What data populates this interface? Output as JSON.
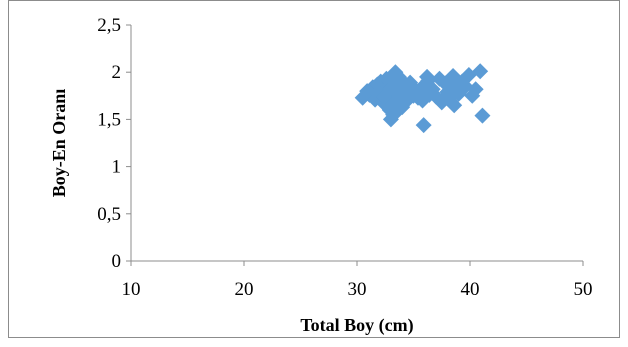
{
  "chart_data": {
    "type": "scatter",
    "title": "",
    "xlabel": "Total Boy (cm)",
    "ylabel": "Boy-En Oranı",
    "xlim": [
      10,
      50
    ],
    "ylim": [
      0,
      2.5
    ],
    "x_ticks": [
      10,
      20,
      30,
      40,
      50
    ],
    "y_ticks": [
      0,
      0.5,
      1,
      1.5,
      2,
      2.5
    ],
    "x_tick_labels": [
      "10",
      "20",
      "30",
      "40",
      "50"
    ],
    "y_tick_labels": [
      "0",
      "0,5",
      "1",
      "1,5",
      "2",
      "2,5"
    ],
    "grid": false,
    "legend": "none",
    "marker": "diamond",
    "marker_color": "#5b9bd5",
    "series": [
      {
        "x": [
          30.5,
          30.9,
          31.1,
          31.4,
          31.6,
          31.8,
          32.0,
          32.1,
          32.3,
          32.5,
          32.6,
          32.8,
          32.9,
          33.0,
          33.1,
          33.2,
          33.3,
          33.4,
          33.5,
          33.6,
          33.7,
          33.8,
          33.9,
          34.0,
          34.1,
          34.2,
          34.3,
          34.4,
          34.5,
          34.6,
          34.8,
          35.0,
          35.2,
          35.4,
          35.6,
          35.9,
          36.0,
          36.2,
          36.4,
          36.7,
          37.0,
          37.3,
          37.5,
          37.8,
          38.0,
          38.2,
          38.5,
          38.7,
          39.0,
          39.3,
          39.6,
          39.9,
          40.2,
          40.5,
          40.9,
          41.1,
          33.0,
          33.2,
          33.5,
          34.0,
          33.6,
          32.7,
          31.9,
          35.8,
          38.6,
          36.3,
          33.8,
          32.4,
          34.7,
          37.6
        ],
        "y": [
          1.73,
          1.8,
          1.76,
          1.84,
          1.71,
          1.87,
          1.79,
          1.9,
          1.68,
          1.82,
          1.93,
          1.75,
          1.6,
          1.86,
          1.66,
          1.97,
          1.78,
          2.0,
          1.7,
          1.88,
          1.95,
          1.62,
          1.83,
          1.91,
          1.74,
          1.86,
          1.69,
          1.8,
          1.77,
          1.72,
          1.85,
          1.75,
          1.81,
          1.73,
          1.79,
          1.44,
          1.87,
          1.95,
          1.76,
          1.82,
          1.74,
          1.93,
          1.68,
          1.88,
          1.79,
          1.72,
          1.96,
          1.83,
          1.77,
          1.9,
          1.85,
          1.97,
          1.75,
          1.82,
          2.01,
          1.54,
          1.5,
          1.55,
          1.58,
          1.63,
          1.92,
          1.8,
          1.78,
          1.7,
          1.65,
          1.91,
          1.85,
          1.74,
          1.89,
          1.71
        ]
      }
    ]
  }
}
